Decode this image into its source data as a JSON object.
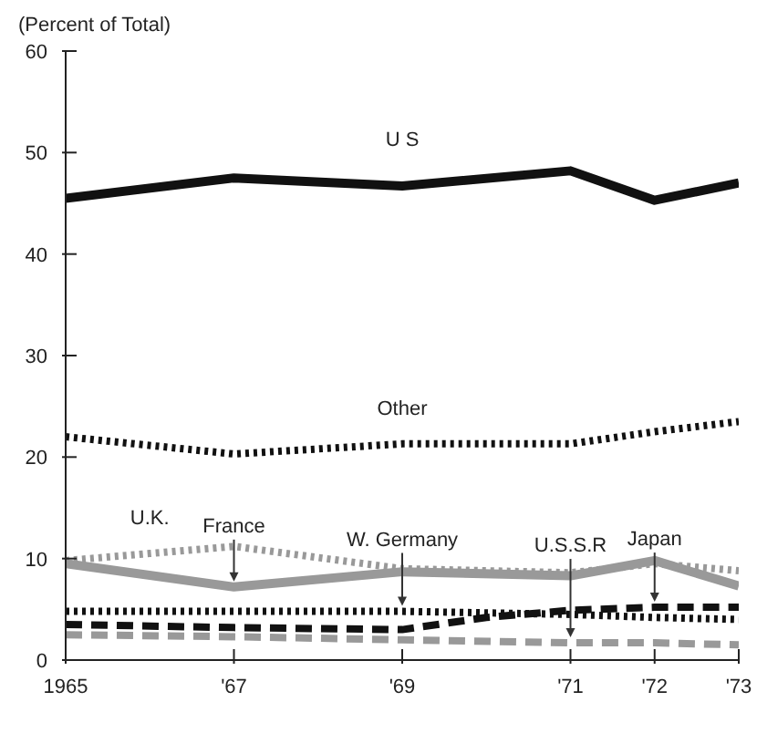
{
  "chart_data": {
    "type": "line",
    "ylabel": "(Percent of Total)",
    "xlim": [
      1965,
      1973
    ],
    "xticks": [
      1965,
      {
        "value": 1967,
        "label": "'67"
      },
      {
        "value": 1969,
        "label": "'69"
      },
      {
        "value": 1971,
        "label": "'71"
      },
      {
        "value": 1972,
        "label": "'72"
      },
      {
        "value": 1973,
        "label": "'73"
      }
    ],
    "ylim": [
      0,
      60
    ],
    "yticks": [
      0,
      10,
      20,
      30,
      40,
      50,
      60
    ],
    "grid": false,
    "legend": false,
    "marker": "none",
    "series": [
      {
        "name": "U S",
        "color": "#111111",
        "line_style": "solid",
        "x": [
          1965,
          1967,
          1969,
          1971,
          1972,
          1973
        ],
        "values": [
          45.5,
          47.5,
          46.7,
          48.2,
          45.3,
          47
        ]
      },
      {
        "name": "Other",
        "color": "#111111",
        "line_style": "dotted",
        "x": [
          1965,
          1967,
          1969,
          1971,
          1972,
          1973
        ],
        "values": [
          22,
          20.3,
          21.3,
          21.3,
          22.5,
          23.5
        ]
      },
      {
        "name": "U.K.",
        "color": "#999999",
        "line_style": "dotted",
        "x": [
          1965,
          1966,
          1967,
          1969,
          1971,
          1972,
          1973
        ],
        "values": [
          9.8,
          10.5,
          11.2,
          9,
          8.6,
          9.5,
          8.8
        ]
      },
      {
        "name": "France",
        "color": "#999999",
        "line_style": "solid",
        "x": [
          1965,
          1967,
          1969,
          1971,
          1972,
          1973
        ],
        "values": [
          9.5,
          7.2,
          8.7,
          8.3,
          9.8,
          7.3
        ]
      },
      {
        "name": "W. Germany",
        "color": "#111111",
        "line_style": "dotted",
        "x": [
          1965,
          1967,
          1969,
          1971,
          1972,
          1973
        ],
        "values": [
          4.8,
          4.8,
          4.8,
          4.5,
          4.2,
          4
        ]
      },
      {
        "name": "U.S.S.R",
        "color": "#999999",
        "line_style": "dashed",
        "x": [
          1965,
          1967,
          1969,
          1971,
          1972,
          1973
        ],
        "values": [
          2.5,
          2.3,
          2,
          1.7,
          1.7,
          1.5
        ]
      },
      {
        "name": "Japan",
        "color": "#111111",
        "line_style": "dashed",
        "x": [
          1965,
          1967,
          1969,
          1970,
          1971,
          1972,
          1973
        ],
        "values": [
          3.5,
          3.2,
          3,
          4.2,
          4.9,
          5.2,
          5.2
        ]
      }
    ]
  }
}
